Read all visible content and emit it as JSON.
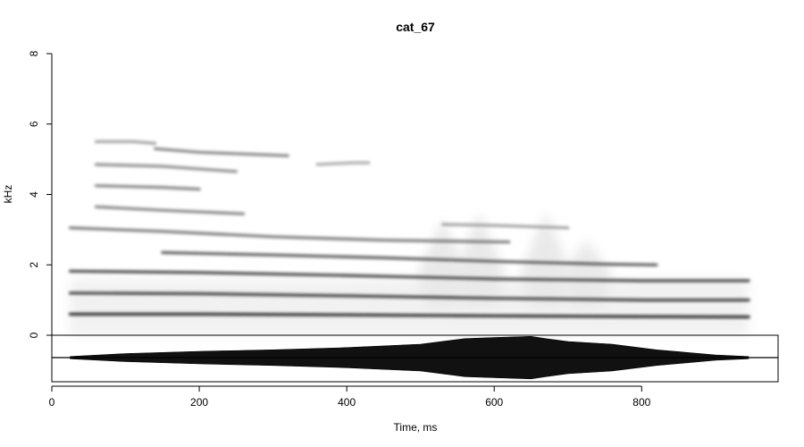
{
  "chart_data": {
    "type": "heatmap",
    "title": "cat_67",
    "xlabel": "Time, ms",
    "ylabel": "kHz",
    "xlim": [
      0,
      985
    ],
    "ylim": [
      0,
      8
    ],
    "x_ticks": [
      0,
      200,
      400,
      600,
      800
    ],
    "x_tick_labels": [
      "0",
      "200",
      "400",
      "600",
      "800"
    ],
    "y_ticks": [
      0,
      2,
      4,
      6,
      8
    ],
    "y_tick_labels": [
      "0",
      "2",
      "4",
      "6",
      "8"
    ],
    "grid": false,
    "colors": {
      "background": "#ffffff",
      "ink": "#000000",
      "band_max": "#1a1a1a"
    },
    "spectrogram": {
      "time_range_ms": [
        25,
        945
      ],
      "bands": [
        {
          "name": "harmonic-1",
          "t": [
            25,
            200,
            400,
            600,
            800,
            945
          ],
          "f": [
            0.6,
            0.6,
            0.58,
            0.55,
            0.53,
            0.52
          ],
          "intensity": 0.95
        },
        {
          "name": "harmonic-2",
          "t": [
            25,
            200,
            400,
            600,
            800,
            945
          ],
          "f": [
            1.2,
            1.18,
            1.12,
            1.05,
            1.0,
            1.0
          ],
          "intensity": 0.85
        },
        {
          "name": "harmonic-3",
          "t": [
            25,
            200,
            400,
            600,
            800,
            945
          ],
          "f": [
            1.82,
            1.78,
            1.7,
            1.6,
            1.55,
            1.55
          ],
          "intensity": 0.8
        },
        {
          "name": "harmonic-4",
          "t": [
            150,
            300,
            450,
            600,
            750,
            820
          ],
          "f": [
            2.35,
            2.28,
            2.2,
            2.1,
            2.02,
            2.0
          ],
          "intensity": 0.7
        },
        {
          "name": "harmonic-5",
          "t": [
            25,
            150,
            300,
            450,
            620
          ],
          "f": [
            3.05,
            2.95,
            2.8,
            2.7,
            2.65
          ],
          "intensity": 0.55
        },
        {
          "name": "harmonic-6",
          "t": [
            530,
            600,
            700
          ],
          "f": [
            3.15,
            3.12,
            3.05
          ],
          "intensity": 0.35
        },
        {
          "name": "harmonic-7",
          "t": [
            60,
            150,
            260
          ],
          "f": [
            3.65,
            3.55,
            3.45
          ],
          "intensity": 0.5
        },
        {
          "name": "harmonic-8",
          "t": [
            60,
            150,
            200
          ],
          "f": [
            4.25,
            4.2,
            4.15
          ],
          "intensity": 0.5
        },
        {
          "name": "harmonic-9",
          "t": [
            60,
            150,
            250
          ],
          "f": [
            4.85,
            4.8,
            4.65
          ],
          "intensity": 0.45
        },
        {
          "name": "harmonic-10",
          "t": [
            140,
            200,
            320
          ],
          "f": [
            5.3,
            5.2,
            5.1
          ],
          "intensity": 0.5
        },
        {
          "name": "harmonic-11",
          "t": [
            60,
            110,
            140
          ],
          "f": [
            5.5,
            5.5,
            5.45
          ],
          "intensity": 0.35
        },
        {
          "name": "harmonic-12",
          "t": [
            340,
            400,
            420
          ],
          "f": [
            5.4,
            5.4,
            5.4
          ],
          "intensity": 0.3
        },
        {
          "name": "harmonic-13",
          "t": [
            360,
            410,
            430
          ],
          "f": [
            4.85,
            4.9,
            4.9
          ],
          "intensity": 0.3
        },
        {
          "name": "harmonic-14",
          "t": [
            360,
            400,
            440
          ],
          "f": [
            3.8,
            3.8,
            3.8
          ],
          "intensity": 0.25
        },
        {
          "name": "harmonic-15",
          "t": [
            360,
            400,
            440
          ],
          "f": [
            3.3,
            3.3,
            3.3
          ],
          "intensity": 0.25
        },
        {
          "name": "harmonic-16",
          "t": [
            540,
            560
          ],
          "f": [
            7.45,
            7.45
          ],
          "intensity": 0.2
        },
        {
          "name": "harmonic-17",
          "t": [
            90,
            120
          ],
          "f": [
            2.5,
            2.5
          ],
          "intensity": 0.25
        }
      ],
      "noise_peaks": [
        {
          "t": 530,
          "f_top": 3.3
        },
        {
          "t": 580,
          "f_top": 3.5
        },
        {
          "t": 670,
          "f_top": 3.5
        },
        {
          "t": 725,
          "f_top": 2.7
        }
      ]
    },
    "waveform": {
      "t": [
        25,
        100,
        200,
        300,
        400,
        500,
        560,
        600,
        650,
        670,
        700,
        760,
        820,
        900,
        945
      ],
      "amplitude": [
        0.05,
        0.18,
        0.28,
        0.35,
        0.45,
        0.6,
        0.85,
        0.9,
        0.95,
        0.85,
        0.72,
        0.6,
        0.35,
        0.12,
        0.05
      ]
    }
  }
}
